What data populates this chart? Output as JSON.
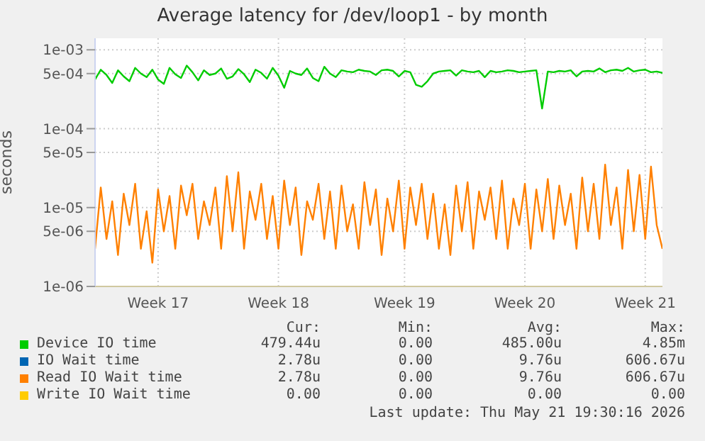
{
  "chart_data": {
    "type": "line",
    "title": "Average latency for /dev/loop1 - by month",
    "ylabel": "seconds",
    "log": true,
    "grid": true,
    "legend": "bottom",
    "marker": "none",
    "line_style": "solid",
    "categories": [
      null,
      null,
      null,
      null,
      null,
      null,
      null,
      null,
      null,
      null,
      null,
      "Week 17",
      null,
      null,
      null,
      null,
      null,
      null,
      null,
      null,
      null,
      null,
      null,
      null,
      null,
      null,
      null,
      null,
      null,
      null,
      null,
      null,
      "Week 18",
      null,
      null,
      null,
      null,
      null,
      null,
      null,
      null,
      null,
      null,
      null,
      null,
      null,
      null,
      null,
      null,
      null,
      null,
      null,
      null,
      null,
      "Week 19",
      null,
      null,
      null,
      null,
      null,
      null,
      null,
      null,
      null,
      null,
      null,
      null,
      null,
      null,
      null,
      null,
      null,
      null,
      null,
      null,
      "Week 20",
      null,
      null,
      null,
      null,
      null,
      null,
      null,
      null,
      null,
      null,
      null,
      null,
      null,
      null,
      null,
      null,
      null,
      null,
      null,
      null,
      "Week 21",
      null,
      null,
      null
    ],
    "ylim": [
      1e-06,
      0.0014
    ],
    "yticks": [
      {
        "value": 1e-06,
        "label": "1e-06"
      },
      {
        "value": 5e-06,
        "label": "5e-06"
      },
      {
        "value": 1e-05,
        "label": "1e-05"
      },
      {
        "value": 5e-05,
        "label": "5e-05"
      },
      {
        "value": 0.0001,
        "label": "1e-04"
      },
      {
        "value": 0.0005,
        "label": "5e-04"
      },
      {
        "value": 0.001,
        "label": "1e-03"
      }
    ],
    "annotations": [
      "Cur:",
      "Min:",
      "Avg:",
      "Max:",
      "479.44u",
      "0.00",
      "485.00u",
      "4.85m",
      "2.78u",
      "0.00",
      "9.76u",
      "606.67u",
      "2.78u",
      "0.00",
      "9.76u",
      "606.67u",
      "0.00",
      "0.00",
      "0.00",
      "0.00",
      "Last update: Thu May 21 19:30:16 2026"
    ],
    "series": [
      {
        "name": "Device IO time",
        "color": "#00cc00",
        "values": [
          0.00042,
          0.00056,
          0.00048,
          0.00038,
          0.00055,
          0.00046,
          0.0004,
          0.00059,
          0.0005,
          0.00045,
          0.00056,
          0.00042,
          0.00037,
          0.00059,
          0.00049,
          0.00044,
          0.00063,
          0.00052,
          0.00041,
          0.00055,
          0.00048,
          0.0005,
          0.00058,
          0.00043,
          0.00046,
          0.00057,
          0.00049,
          0.00039,
          0.00056,
          0.00051,
          0.00043,
          0.00059,
          0.00047,
          0.00033,
          0.00054,
          0.0005,
          0.00048,
          0.00058,
          0.00044,
          0.0004,
          0.00061,
          0.0005,
          0.00045,
          0.00055,
          0.00053,
          0.00052,
          0.00056,
          0.00054,
          0.00053,
          0.00048,
          0.00055,
          0.00056,
          0.00054,
          0.00046,
          0.00054,
          0.00052,
          0.00036,
          0.00034,
          0.0004,
          0.0005,
          0.00053,
          0.00054,
          0.00055,
          0.00047,
          0.00055,
          0.00053,
          0.00052,
          0.00054,
          0.00045,
          0.00054,
          0.00052,
          0.00053,
          0.00055,
          0.00054,
          0.00052,
          0.00053,
          0.00054,
          0.00055,
          0.00018,
          0.00053,
          0.00052,
          0.00054,
          0.00053,
          0.00055,
          0.00046,
          0.00053,
          0.00054,
          0.00053,
          0.00058,
          0.00052,
          0.00055,
          0.00056,
          0.00054,
          0.00059,
          0.00053,
          0.00055,
          0.00056,
          0.00052,
          0.00053,
          0.00051
        ]
      },
      {
        "name": "IO Wait time",
        "color": "#0066b3",
        "values": [
          null,
          null,
          null,
          null,
          null,
          null,
          null,
          null,
          null,
          null,
          null,
          null,
          null,
          null,
          null,
          null,
          null,
          null,
          null,
          null,
          null,
          null,
          null,
          null,
          null,
          null,
          null,
          null,
          null,
          null,
          null,
          null,
          null,
          null,
          null,
          null,
          null,
          null,
          null,
          null,
          null,
          null,
          null,
          null,
          null,
          null,
          null,
          null,
          null,
          null,
          null,
          null,
          null,
          null,
          null,
          null,
          null,
          null,
          null,
          null,
          null,
          null,
          null,
          null,
          null,
          null,
          null,
          null,
          null,
          null,
          null,
          null,
          null,
          null,
          null,
          null,
          null,
          null,
          null,
          null,
          null,
          null,
          null,
          null,
          null,
          null,
          null,
          null,
          null,
          null,
          null,
          null,
          null,
          null,
          null,
          null,
          null,
          null,
          null,
          null
        ]
      },
      {
        "name": "Read IO Wait time",
        "color": "#ff8000",
        "values": [
          3e-06,
          1.8e-05,
          4e-06,
          1.2e-05,
          2.5e-06,
          1.5e-05,
          6e-06,
          2e-05,
          3e-06,
          9e-06,
          2e-06,
          1.7e-05,
          5e-06,
          1.4e-05,
          3e-06,
          1.9e-05,
          8e-06,
          2e-05,
          4e-06,
          1.2e-05,
          6e-06,
          1.8e-05,
          3e-06,
          2.5e-05,
          5e-06,
          2.8e-05,
          3e-06,
          1.6e-05,
          7e-06,
          2e-05,
          4e-06,
          1.4e-05,
          3e-06,
          2.2e-05,
          6e-06,
          1.8e-05,
          2.5e-06,
          1.2e-05,
          7e-06,
          2e-05,
          4e-06,
          1.6e-05,
          3e-06,
          1.9e-05,
          5e-06,
          1.1e-05,
          3e-06,
          2.1e-05,
          6e-06,
          1.7e-05,
          2.5e-06,
          1.3e-05,
          5e-06,
          2.2e-05,
          3e-06,
          1.8e-05,
          6e-06,
          2e-05,
          4e-06,
          1.5e-05,
          3e-06,
          1.1e-05,
          2.5e-06,
          1.9e-05,
          5e-06,
          2.1e-05,
          3e-06,
          1.6e-05,
          7e-06,
          1.8e-05,
          4e-06,
          2.2e-05,
          3e-06,
          1.3e-05,
          6e-06,
          2e-05,
          3e-06,
          1.7e-05,
          5e-06,
          2.3e-05,
          4e-06,
          1.9e-05,
          6e-06,
          1.5e-05,
          3e-06,
          2.4e-05,
          5e-06,
          2e-05,
          4e-06,
          3.5e-05,
          6e-06,
          1.8e-05,
          3e-06,
          3e-05,
          5e-06,
          2.6e-05,
          4e-06,
          3.3e-05,
          6e-06,
          3e-06
        ]
      },
      {
        "name": "Write IO Wait time",
        "color": "#ffcc00",
        "values": [
          null,
          null,
          null,
          null,
          null,
          null,
          null,
          null,
          null,
          null,
          null,
          null,
          null,
          null,
          null,
          null,
          null,
          null,
          null,
          null,
          null,
          null,
          null,
          null,
          null,
          null,
          null,
          null,
          null,
          null,
          null,
          null,
          null,
          null,
          null,
          null,
          null,
          null,
          null,
          null,
          null,
          null,
          null,
          null,
          null,
          null,
          null,
          null,
          null,
          null,
          null,
          null,
          null,
          null,
          null,
          null,
          null,
          null,
          null,
          null,
          null,
          null,
          null,
          null,
          null,
          null,
          null,
          null,
          null,
          null,
          null,
          null,
          null,
          null,
          null,
          null,
          null,
          null,
          null,
          null,
          null,
          null,
          null,
          null,
          null,
          null,
          null,
          null,
          null,
          null,
          null,
          null,
          null,
          null,
          null,
          null,
          null,
          null,
          null,
          null
        ]
      }
    ]
  }
}
